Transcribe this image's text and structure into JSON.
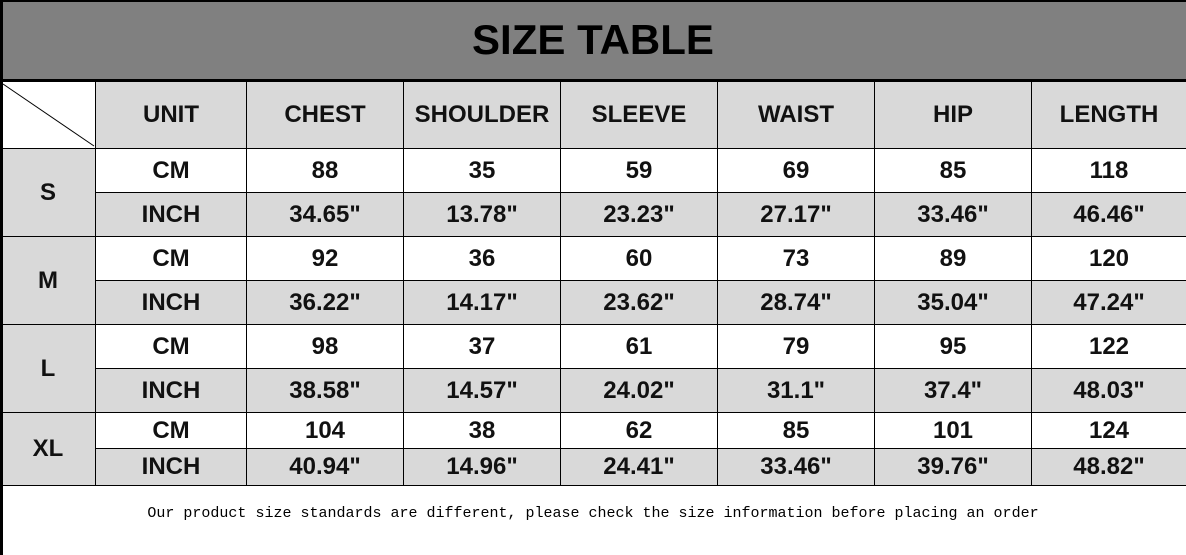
{
  "title": "SIZE TABLE",
  "headers": [
    "UNIT",
    "CHEST",
    "SHOULDER",
    "SLEEVE",
    "WAIST",
    "HIP",
    "LENGTH"
  ],
  "sizes": [
    {
      "size": "S",
      "rows": [
        {
          "unit": "CM",
          "values": [
            "88",
            "35",
            "59",
            "69",
            "85",
            "118"
          ]
        },
        {
          "unit": "INCH",
          "values": [
            "34.65\"",
            "13.78\"",
            "23.23\"",
            "27.17\"",
            "33.46\"",
            "46.46\""
          ]
        }
      ]
    },
    {
      "size": "M",
      "rows": [
        {
          "unit": "CM",
          "values": [
            "92",
            "36",
            "60",
            "73",
            "89",
            "120"
          ]
        },
        {
          "unit": "INCH",
          "values": [
            "36.22\"",
            "14.17\"",
            "23.62\"",
            "28.74\"",
            "35.04\"",
            "47.24\""
          ]
        }
      ]
    },
    {
      "size": "L",
      "rows": [
        {
          "unit": "CM",
          "values": [
            "98",
            "37",
            "61",
            "79",
            "95",
            "122"
          ]
        },
        {
          "unit": "INCH",
          "values": [
            "38.58\"",
            "14.57\"",
            "24.02\"",
            "31.1\"",
            "37.4\"",
            "48.03\""
          ]
        }
      ]
    },
    {
      "size": "XL",
      "rows": [
        {
          "unit": "CM",
          "values": [
            "104",
            "38",
            "62",
            "85",
            "101",
            "124"
          ]
        },
        {
          "unit": "INCH",
          "values": [
            "40.94\"",
            "14.96\"",
            "24.41\"",
            "33.46\"",
            "39.76\"",
            "48.82\""
          ]
        }
      ]
    }
  ],
  "footer": "Our product size standards are different, please check the size information before placing an order",
  "colors": {
    "title_bg": "#808080",
    "header_bg": "#d9d9d9",
    "border": "#000000"
  }
}
